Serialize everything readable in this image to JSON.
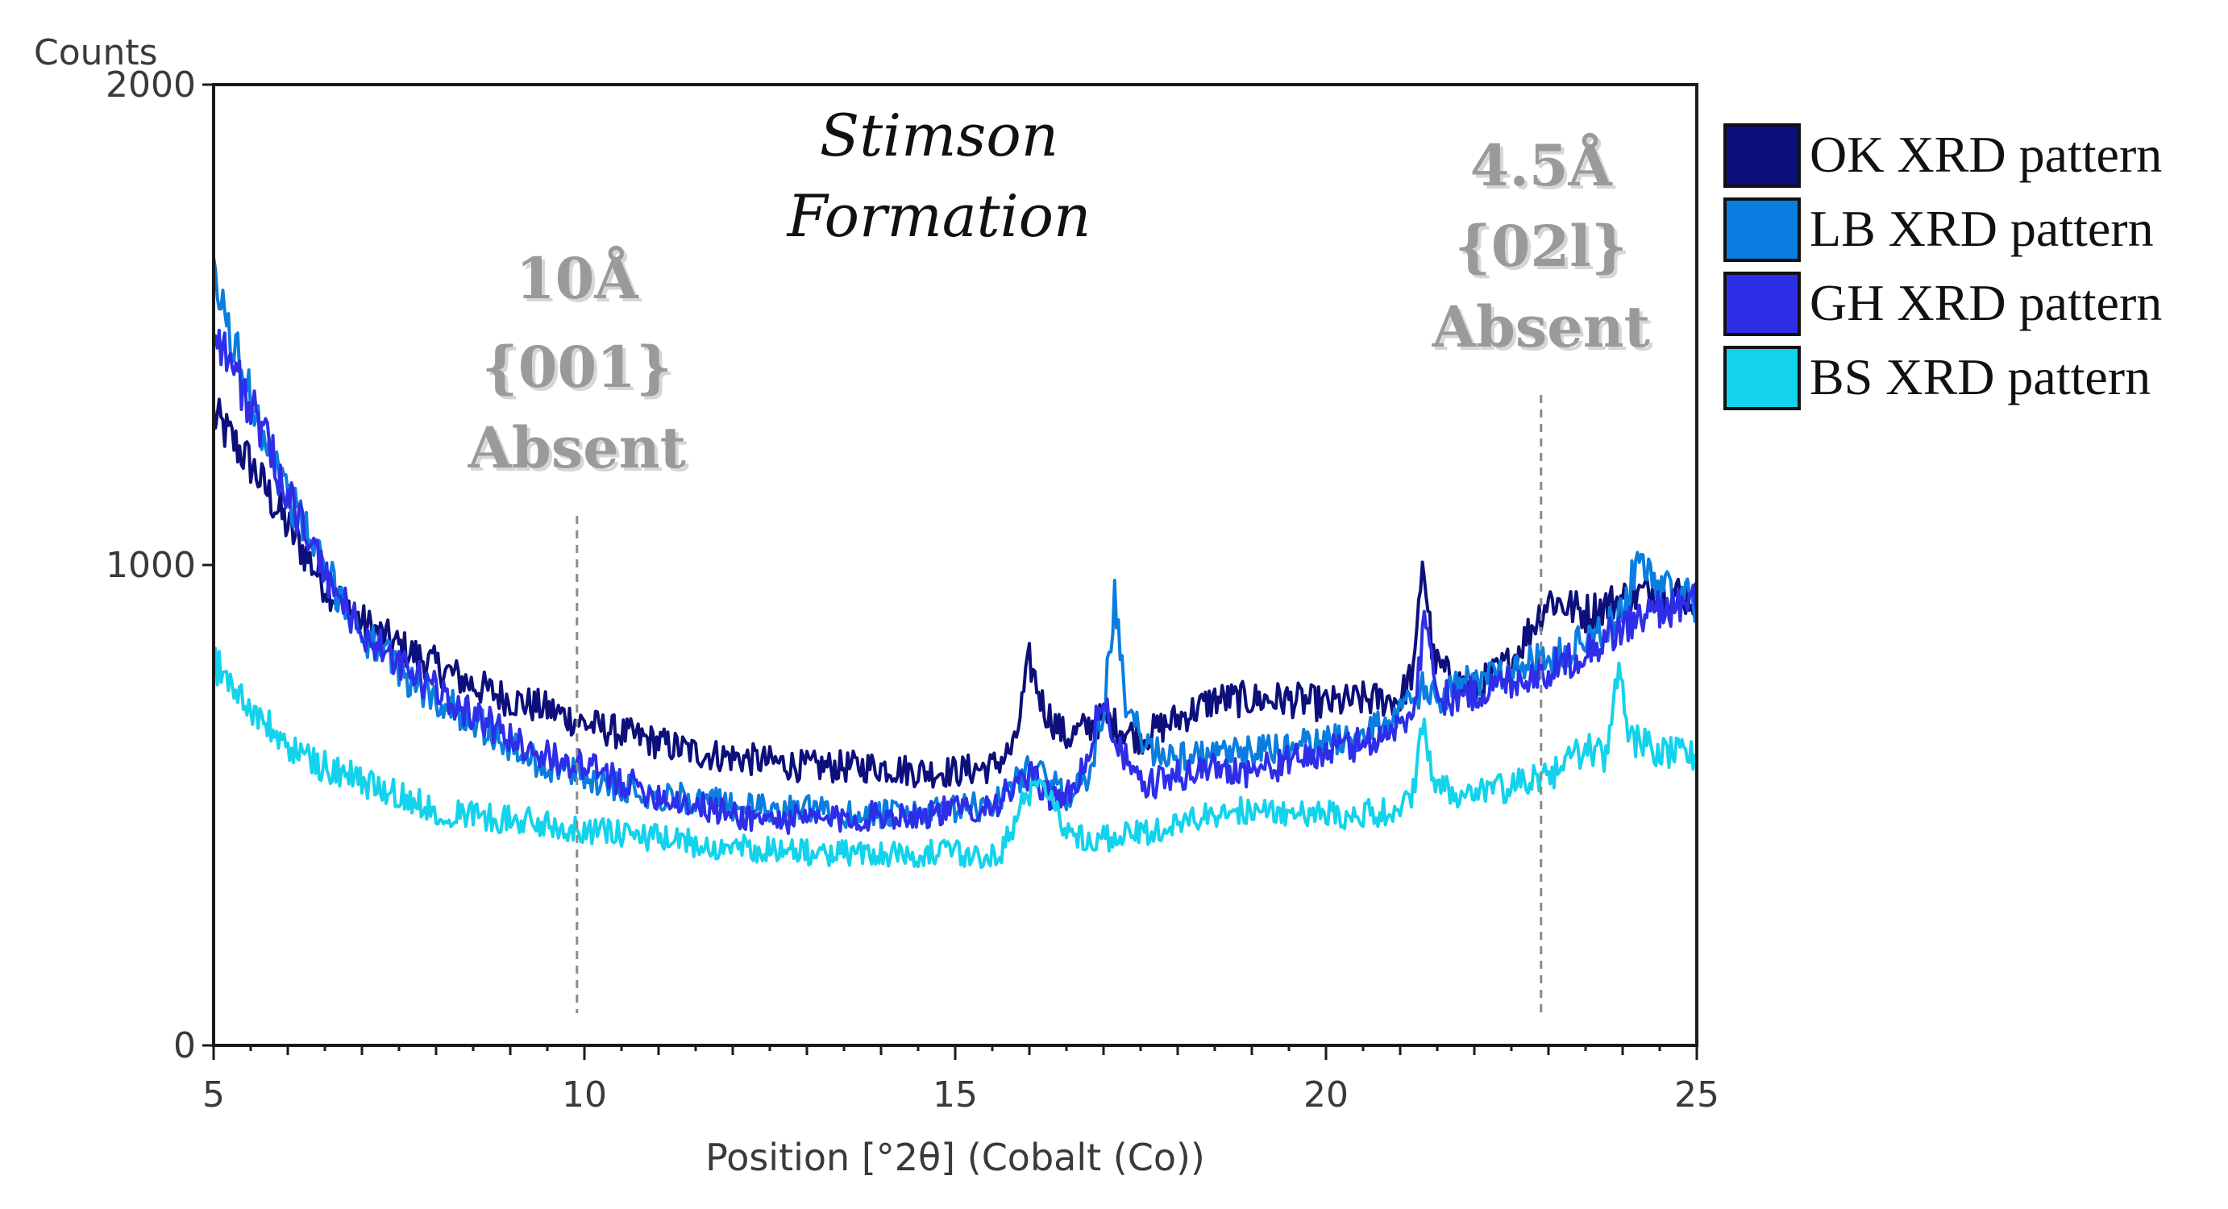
{
  "chart_data": {
    "type": "line",
    "title": "Stimson Formation",
    "xlabel": "Position [°2θ] (Cobalt (Co))",
    "ylabel": "Counts",
    "xlim": [
      5,
      25
    ],
    "ylim": [
      0,
      2000
    ],
    "x_ticks": [
      5,
      10,
      15,
      20,
      25
    ],
    "y_ticks": [
      0,
      1000,
      2000
    ],
    "grid": false,
    "legend_position": "right",
    "annotations": [
      {
        "lines": [
          "10Å",
          "{001}",
          "Absent"
        ],
        "x": 9.9
      },
      {
        "lines": [
          "4.5Å",
          "{02l}",
          "Absent"
        ],
        "x": 22.9
      }
    ],
    "series": [
      {
        "name": "OK XRD pattern",
        "color": "#0d0f7a",
        "points": [
          [
            5,
            1310
          ],
          [
            5.5,
            1210
          ],
          [
            6,
            1080
          ],
          [
            6.5,
            960
          ],
          [
            7,
            880
          ],
          [
            7.5,
            830
          ],
          [
            8,
            790
          ],
          [
            8.5,
            750
          ],
          [
            9,
            720
          ],
          [
            9.5,
            700
          ],
          [
            10,
            670
          ],
          [
            10.5,
            650
          ],
          [
            11,
            630
          ],
          [
            11.5,
            610
          ],
          [
            12,
            600
          ],
          [
            12.5,
            590
          ],
          [
            13,
            580
          ],
          [
            13.5,
            580
          ],
          [
            14,
            580
          ],
          [
            14.5,
            570
          ],
          [
            15,
            570
          ],
          [
            15.5,
            580
          ],
          [
            15.8,
            620
          ],
          [
            16.0,
            800
          ],
          [
            16.2,
            700
          ],
          [
            16.5,
            640
          ],
          [
            17,
            680
          ],
          [
            17.5,
            640
          ],
          [
            18,
            680
          ],
          [
            18.5,
            720
          ],
          [
            19,
            720
          ],
          [
            19.5,
            720
          ],
          [
            20,
            710
          ],
          [
            20.5,
            720
          ],
          [
            21,
            720
          ],
          [
            21.2,
            790
          ],
          [
            21.3,
            1020
          ],
          [
            21.45,
            800
          ],
          [
            21.7,
            760
          ],
          [
            22,
            740
          ],
          [
            22.5,
            800
          ],
          [
            23,
            930
          ],
          [
            23.5,
            900
          ],
          [
            24,
            930
          ],
          [
            24.5,
            950
          ],
          [
            25,
            930
          ]
        ]
      },
      {
        "name": "LB XRD pattern",
        "color": "#0a7de0",
        "points": [
          [
            5,
            1590
          ],
          [
            5.5,
            1350
          ],
          [
            6,
            1150
          ],
          [
            6.5,
            990
          ],
          [
            7,
            860
          ],
          [
            7.5,
            780
          ],
          [
            8,
            720
          ],
          [
            8.5,
            680
          ],
          [
            9,
            620
          ],
          [
            9.5,
            580
          ],
          [
            10,
            560
          ],
          [
            10.5,
            540
          ],
          [
            11,
            520
          ],
          [
            11.5,
            510
          ],
          [
            12,
            500
          ],
          [
            12.5,
            490
          ],
          [
            13,
            490
          ],
          [
            13.5,
            480
          ],
          [
            14,
            480
          ],
          [
            14.5,
            480
          ],
          [
            15,
            490
          ],
          [
            15.5,
            500
          ],
          [
            16,
            580
          ],
          [
            16.5,
            520
          ],
          [
            16.8,
            560
          ],
          [
            17.0,
            700
          ],
          [
            17.15,
            930
          ],
          [
            17.3,
            700
          ],
          [
            17.6,
            620
          ],
          [
            18,
            600
          ],
          [
            18.5,
            600
          ],
          [
            19,
            610
          ],
          [
            19.5,
            620
          ],
          [
            20,
            630
          ],
          [
            20.5,
            650
          ],
          [
            21,
            690
          ],
          [
            21.3,
            740
          ],
          [
            21.5,
            720
          ],
          [
            22,
            760
          ],
          [
            22.5,
            790
          ],
          [
            23,
            800
          ],
          [
            23.5,
            840
          ],
          [
            24,
            900
          ],
          [
            24.2,
            1010
          ],
          [
            24.5,
            960
          ],
          [
            25,
            920
          ]
        ]
      },
      {
        "name": "GH XRD pattern",
        "color": "#2e2ee8",
        "points": [
          [
            5,
            1500
          ],
          [
            5.5,
            1330
          ],
          [
            6,
            1150
          ],
          [
            6.5,
            980
          ],
          [
            7,
            860
          ],
          [
            7.5,
            790
          ],
          [
            8,
            740
          ],
          [
            8.5,
            690
          ],
          [
            9,
            640
          ],
          [
            9.5,
            600
          ],
          [
            10,
            580
          ],
          [
            10.5,
            550
          ],
          [
            11,
            520
          ],
          [
            11.5,
            500
          ],
          [
            12,
            480
          ],
          [
            12.5,
            470
          ],
          [
            13,
            470
          ],
          [
            13.5,
            470
          ],
          [
            14,
            480
          ],
          [
            14.5,
            480
          ],
          [
            15,
            490
          ],
          [
            15.5,
            500
          ],
          [
            16,
            560
          ],
          [
            16.3,
            520
          ],
          [
            16.6,
            520
          ],
          [
            17,
            720
          ],
          [
            17.2,
            620
          ],
          [
            17.5,
            540
          ],
          [
            18,
            560
          ],
          [
            18.5,
            580
          ],
          [
            19,
            570
          ],
          [
            19.5,
            590
          ],
          [
            20,
            610
          ],
          [
            20.5,
            630
          ],
          [
            21,
            660
          ],
          [
            21.2,
            720
          ],
          [
            21.35,
            910
          ],
          [
            21.5,
            720
          ],
          [
            22,
            730
          ],
          [
            22.5,
            760
          ],
          [
            23,
            780
          ],
          [
            23.5,
            820
          ],
          [
            24,
            870
          ],
          [
            24.5,
            910
          ],
          [
            25,
            920
          ]
        ]
      },
      {
        "name": "BS XRD pattern",
        "color": "#13d3ec",
        "points": [
          [
            5,
            800
          ],
          [
            5.5,
            700
          ],
          [
            6,
            620
          ],
          [
            6.5,
            580
          ],
          [
            7,
            550
          ],
          [
            7.5,
            520
          ],
          [
            8,
            490
          ],
          [
            8.5,
            480
          ],
          [
            9,
            470
          ],
          [
            9.5,
            460
          ],
          [
            10,
            450
          ],
          [
            10.5,
            440
          ],
          [
            11,
            430
          ],
          [
            11.5,
            420
          ],
          [
            12,
            410
          ],
          [
            12.5,
            410
          ],
          [
            13,
            400
          ],
          [
            13.5,
            400
          ],
          [
            14,
            400
          ],
          [
            14.5,
            400
          ],
          [
            15,
            400
          ],
          [
            15.3,
            390
          ],
          [
            15.6,
            400
          ],
          [
            16,
            530
          ],
          [
            16.2,
            560
          ],
          [
            16.5,
            440
          ],
          [
            17,
            430
          ],
          [
            17.5,
            440
          ],
          [
            18,
            460
          ],
          [
            18.5,
            480
          ],
          [
            19,
            490
          ],
          [
            19.5,
            480
          ],
          [
            20,
            480
          ],
          [
            20.5,
            480
          ],
          [
            21,
            490
          ],
          [
            21.2,
            540
          ],
          [
            21.3,
            680
          ],
          [
            21.45,
            560
          ],
          [
            21.7,
            520
          ],
          [
            22,
            520
          ],
          [
            22.5,
            540
          ],
          [
            23,
            560
          ],
          [
            23.5,
            620
          ],
          [
            23.8,
            600
          ],
          [
            23.95,
            800
          ],
          [
            24.1,
            640
          ],
          [
            24.5,
            610
          ],
          [
            25,
            600
          ]
        ]
      }
    ]
  }
}
